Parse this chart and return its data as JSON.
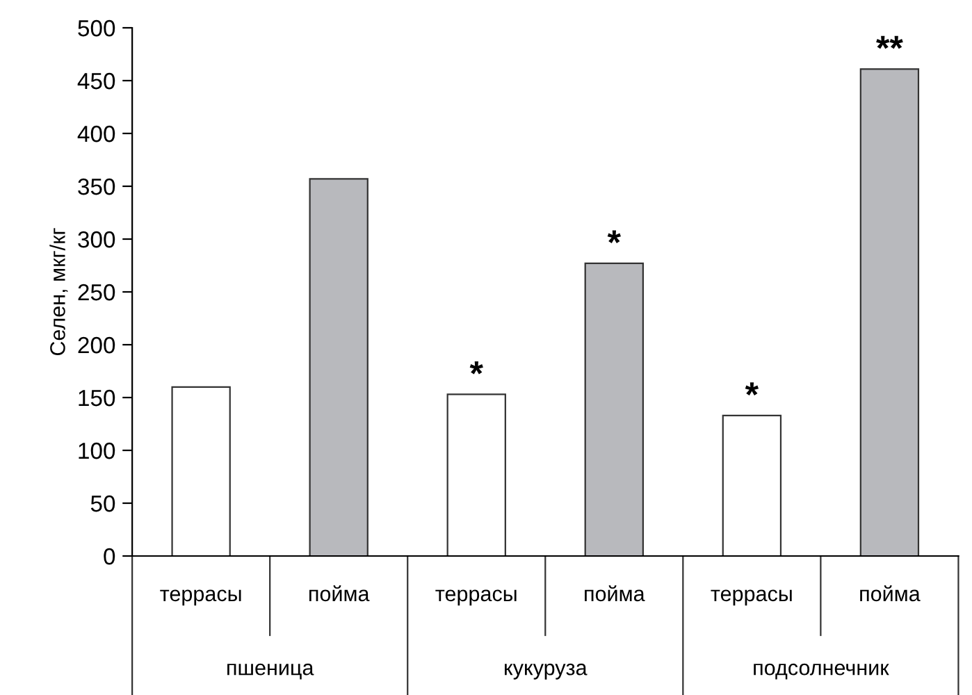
{
  "chart_data": {
    "type": "bar",
    "ylabel": "Селен, мкг/кг",
    "categories": [
      "террасы",
      "пойма",
      "террасы",
      "пойма",
      "террасы",
      "пойма"
    ],
    "values": [
      160,
      357,
      153,
      277,
      133,
      461
    ],
    "colors": [
      "#ffffff",
      "#b8b9bd",
      "#ffffff",
      "#b8b9bd",
      "#ffffff",
      "#b8b9bd"
    ],
    "value_labels": [
      null,
      null,
      "*",
      "*",
      "*",
      "**"
    ],
    "annotations": [
      "пшеница",
      "кукуруза",
      "подсолнечник"
    ],
    "ylim": [
      0,
      500
    ],
    "yticks": [
      0,
      50,
      100,
      150,
      200,
      250,
      300,
      350,
      400,
      450,
      500
    ],
    "grid": false,
    "legend": false
  }
}
